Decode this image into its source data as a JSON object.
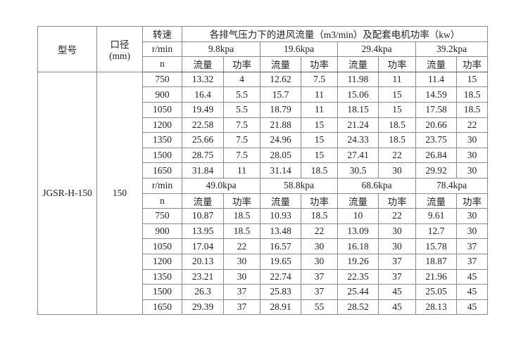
{
  "header": {
    "model_label": "型号",
    "diameter_label": "口径",
    "diameter_unit": "(mm)",
    "speed_label": "转速",
    "speed_unit": "r/min",
    "speed_symbol": "n",
    "title": "各排气压力下的进风流量（m3/min）及配套电机功率（kw）",
    "flow_label": "流量",
    "power_label": "功率"
  },
  "model": "JGSR-H-150",
  "diameter": "150",
  "blocks": [
    {
      "pressures": [
        "9.8kpa",
        "19.6kpa",
        "29.4kpa",
        "39.2kpa"
      ],
      "rows": [
        [
          "750",
          "13.32",
          "4",
          "12.62",
          "7.5",
          "11.98",
          "11",
          "11.4",
          "15"
        ],
        [
          "900",
          "16.4",
          "5.5",
          "15.7",
          "11",
          "15.06",
          "15",
          "14.59",
          "18.5"
        ],
        [
          "1050",
          "19.49",
          "5.5",
          "18.79",
          "11",
          "18.15",
          "15",
          "17.58",
          "18.5"
        ],
        [
          "1200",
          "22.58",
          "7.5",
          "21.88",
          "15",
          "21.24",
          "18.5",
          "20.66",
          "22"
        ],
        [
          "1350",
          "25.66",
          "7.5",
          "24.96",
          "15",
          "24.33",
          "18.5",
          "23.75",
          "30"
        ],
        [
          "1500",
          "28.75",
          "7.5",
          "28.05",
          "15",
          "27.41",
          "22",
          "26.84",
          "30"
        ],
        [
          "1650",
          "31.84",
          "11",
          "31.14",
          "18.5",
          "30.5",
          "30",
          "29.92",
          "30"
        ]
      ]
    },
    {
      "pressures": [
        "49.0kpa",
        "58.8kpa",
        "68.6kpa",
        "78.4kpa"
      ],
      "rows": [
        [
          "750",
          "10.87",
          "18.5",
          "10.93",
          "18.5",
          "10",
          "22",
          "9.61",
          "30"
        ],
        [
          "900",
          "13.95",
          "18.5",
          "13.48",
          "22",
          "13.09",
          "30",
          "12.7",
          "30"
        ],
        [
          "1050",
          "17.04",
          "22",
          "16.57",
          "30",
          "16.18",
          "30",
          "15.78",
          "37"
        ],
        [
          "1200",
          "20.13",
          "30",
          "19.65",
          "30",
          "19.26",
          "37",
          "18.87",
          "37"
        ],
        [
          "1350",
          "23.21",
          "30",
          "22.74",
          "37",
          "22.35",
          "37",
          "21.96",
          "45"
        ],
        [
          "1500",
          "26.3",
          "37",
          "25.83",
          "37",
          "25.44",
          "45",
          "25.05",
          "45"
        ],
        [
          "1650",
          "29.39",
          "37",
          "28.91",
          "55",
          "28.52",
          "45",
          "28.13",
          "45"
        ]
      ]
    }
  ]
}
